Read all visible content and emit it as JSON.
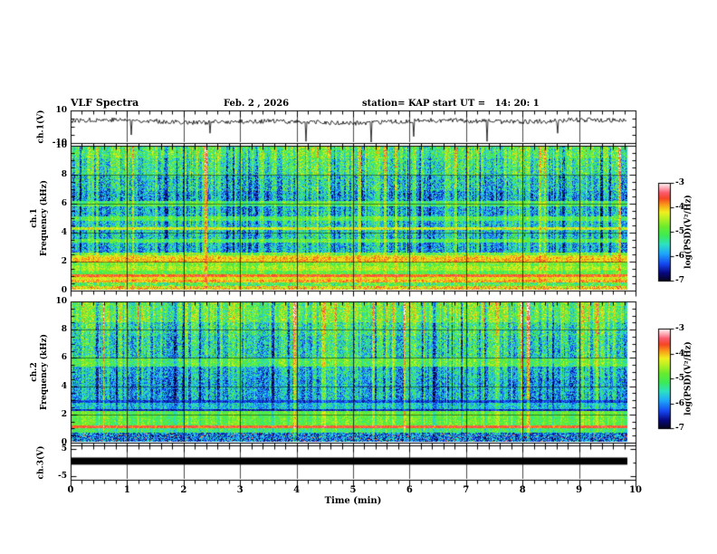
{
  "header": {
    "title": "VLF Spectra",
    "date": "Feb. 2 , 2026",
    "station": "station= KAP",
    "start_ut": "start UT =   14: 20: 1"
  },
  "axes": {
    "x": {
      "label": "Time (min)",
      "ticks": [
        "0",
        "1",
        "2",
        "3",
        "4",
        "5",
        "6",
        "7",
        "8",
        "9",
        "10"
      ],
      "range": [
        0,
        10
      ]
    },
    "ch1_wave": {
      "ylabel": "ch.1(V)",
      "yticks": [
        "10",
        "-10"
      ],
      "ylim": [
        -10,
        10
      ]
    },
    "ch1_spec": {
      "ylabel_lines": [
        "ch.1",
        "Frequency (kHz)"
      ],
      "yticks": [
        "10",
        "8",
        "6",
        "4",
        "2",
        "0"
      ],
      "ylim": [
        0,
        10
      ]
    },
    "ch2_spec": {
      "ylabel_lines": [
        "ch.2",
        "Frequency (kHz)"
      ],
      "yticks": [
        "10",
        "8",
        "6",
        "4",
        "2",
        "0"
      ],
      "ylim": [
        0,
        10
      ]
    },
    "ch3": {
      "ylabel": "ch.3(V)",
      "yticks": [
        "5",
        "-5"
      ],
      "ylim": [
        -6.5,
        6.5
      ]
    }
  },
  "colorbars": [
    {
      "label": "log(PSD)(V²/Hz)",
      "ticks": [
        "-3",
        "-4",
        "-5",
        "-6",
        "-7"
      ]
    },
    {
      "label": "log(PSD)(V²/Hz)",
      "ticks": [
        "-3",
        "-4",
        "-5",
        "-6",
        "-7"
      ]
    }
  ],
  "colormap": {
    "stops": [
      [
        0.0,
        5,
        5,
        30
      ],
      [
        0.08,
        8,
        8,
        130
      ],
      [
        0.17,
        20,
        70,
        240
      ],
      [
        0.28,
        30,
        170,
        250
      ],
      [
        0.37,
        45,
        225,
        195
      ],
      [
        0.46,
        60,
        235,
        85
      ],
      [
        0.55,
        105,
        235,
        45
      ],
      [
        0.63,
        180,
        240,
        35
      ],
      [
        0.7,
        240,
        240,
        30
      ],
      [
        0.77,
        250,
        160,
        25
      ],
      [
        0.84,
        245,
        70,
        35
      ],
      [
        0.9,
        250,
        90,
        110
      ],
      [
        0.95,
        255,
        175,
        185
      ],
      [
        1.0,
        255,
        255,
        255
      ]
    ]
  },
  "chart_data": [
    {
      "type": "line",
      "name": "ch1-waveform",
      "ylabel": "ch.1(V)",
      "xlim": [
        0,
        10
      ],
      "ylim": [
        -10,
        10
      ],
      "x_end": 9.84,
      "signal": {
        "baseline": 3.2,
        "slow_amp1": 0.6,
        "slow_amp2": 0.5,
        "jitter": 2.8,
        "seed": 77,
        "spikes": [
          [
            1.05,
            -5
          ],
          [
            2.45,
            -4
          ],
          [
            4.15,
            -9
          ],
          [
            5.3,
            -10
          ],
          [
            6.05,
            -6
          ],
          [
            7.35,
            -9
          ],
          [
            8.6,
            -4
          ]
        ]
      }
    },
    {
      "type": "heatmap",
      "name": "ch1-spectrogram",
      "ylabel": "ch.1 Frequency (kHz)",
      "xlim": [
        0,
        10
      ],
      "ylim": [
        0,
        10
      ],
      "x_end": 9.84,
      "seed": 1234,
      "value_scale": {
        "label": "log(PSD)(V²/Hz)",
        "min": -7,
        "max": -3
      },
      "bands": [
        {
          "f_lo": 9.2,
          "f_hi": 10.0,
          "level": 0.5,
          "noise": 0.17,
          "streak": 1.0
        },
        {
          "f_lo": 8.0,
          "f_hi": 9.2,
          "level": 0.44,
          "noise": 0.19,
          "streak": 1.0
        },
        {
          "f_lo": 6.9,
          "f_hi": 8.0,
          "level": 0.36,
          "noise": 0.2,
          "streak": 1.0
        },
        {
          "f_lo": 6.2,
          "f_hi": 6.9,
          "level": 0.29,
          "noise": 0.18,
          "streak": 1.0
        },
        {
          "f_lo": 5.8,
          "f_hi": 6.2,
          "level": 0.5,
          "noise": 0.12,
          "streak": 0.6
        },
        {
          "f_lo": 5.1,
          "f_hi": 5.8,
          "level": 0.32,
          "noise": 0.18,
          "streak": 1.0
        },
        {
          "f_lo": 4.8,
          "f_hi": 5.1,
          "level": 0.5,
          "noise": 0.12,
          "streak": 0.6
        },
        {
          "f_lo": 4.35,
          "f_hi": 4.8,
          "level": 0.36,
          "noise": 0.17,
          "streak": 0.9
        },
        {
          "f_lo": 4.15,
          "f_hi": 4.35,
          "level": 0.66,
          "noise": 0.1,
          "streak": 0.3
        },
        {
          "f_lo": 3.55,
          "f_hi": 4.15,
          "level": 0.34,
          "noise": 0.17,
          "streak": 0.9
        },
        {
          "f_lo": 3.25,
          "f_hi": 3.55,
          "level": 0.5,
          "noise": 0.12,
          "streak": 0.6
        },
        {
          "f_lo": 2.6,
          "f_hi": 3.25,
          "level": 0.31,
          "noise": 0.17,
          "streak": 0.9
        },
        {
          "f_lo": 2.4,
          "f_hi": 2.6,
          "level": 0.55,
          "noise": 0.14,
          "streak": 0.5
        },
        {
          "f_lo": 2.25,
          "f_hi": 2.4,
          "level": 0.68,
          "noise": 0.11,
          "streak": 0.3
        },
        {
          "f_lo": 1.9,
          "f_hi": 2.25,
          "level": 0.74,
          "noise": 0.09,
          "streak": 0.2
        },
        {
          "f_lo": 1.6,
          "f_hi": 1.9,
          "level": 0.56,
          "noise": 0.12,
          "streak": 0.4
        },
        {
          "f_lo": 1.3,
          "f_hi": 1.6,
          "level": 0.62,
          "noise": 0.1,
          "streak": 0.4
        },
        {
          "f_lo": 1.05,
          "f_hi": 1.3,
          "level": 0.52,
          "noise": 0.1,
          "streak": 0.4
        },
        {
          "f_lo": 0.85,
          "f_hi": 1.05,
          "level": 0.82,
          "noise": 0.07,
          "streak": 0.2
        },
        {
          "f_lo": 0.65,
          "f_hi": 0.85,
          "level": 0.68,
          "noise": 0.09,
          "streak": 0.3
        },
        {
          "f_lo": 0.45,
          "f_hi": 0.65,
          "level": 0.76,
          "noise": 0.09,
          "streak": 0.2
        },
        {
          "f_lo": 0.25,
          "f_hi": 0.45,
          "level": 0.5,
          "noise": 0.16,
          "streak": 0.4
        },
        {
          "f_lo": 0.0,
          "f_hi": 0.25,
          "level": 0.71,
          "noise": 0.15,
          "streak": 0.2,
          "specks": 0.05
        }
      ]
    },
    {
      "type": "heatmap",
      "name": "ch2-spectrogram",
      "ylabel": "ch.2 Frequency (kHz)",
      "xlim": [
        0,
        10
      ],
      "ylim": [
        0,
        10
      ],
      "x_end": 9.84,
      "seed": 98765,
      "value_scale": {
        "label": "log(PSD)(V²/Hz)",
        "min": -7,
        "max": -3
      },
      "bands": [
        {
          "f_lo": 8.6,
          "f_hi": 10.0,
          "level": 0.52,
          "noise": 0.17,
          "streak": 1.0
        },
        {
          "f_lo": 7.6,
          "f_hi": 8.6,
          "level": 0.42,
          "noise": 0.19,
          "streak": 1.0
        },
        {
          "f_lo": 6.0,
          "f_hi": 7.6,
          "level": 0.38,
          "noise": 0.19,
          "streak": 1.0
        },
        {
          "f_lo": 5.4,
          "f_hi": 6.0,
          "level": 0.5,
          "noise": 0.13,
          "streak": 0.7
        },
        {
          "f_lo": 4.6,
          "f_hi": 5.4,
          "level": 0.32,
          "noise": 0.17,
          "streak": 0.9
        },
        {
          "f_lo": 3.0,
          "f_hi": 4.6,
          "level": 0.29,
          "noise": 0.17,
          "streak": 0.9
        },
        {
          "f_lo": 2.75,
          "f_hi": 3.0,
          "level": 0.16,
          "noise": 0.09,
          "streak": 0.3
        },
        {
          "f_lo": 2.35,
          "f_hi": 2.75,
          "level": 0.32,
          "noise": 0.13,
          "streak": 0.5
        },
        {
          "f_lo": 2.2,
          "f_hi": 2.35,
          "level": 0.13,
          "noise": 0.07,
          "streak": 0.2
        },
        {
          "f_lo": 1.15,
          "f_hi": 2.2,
          "level": 0.52,
          "noise": 0.1,
          "streak": 0.5
        },
        {
          "f_lo": 0.95,
          "f_hi": 1.15,
          "level": 0.84,
          "noise": 0.07,
          "streak": 0.2
        },
        {
          "f_lo": 0.6,
          "f_hi": 0.95,
          "level": 0.45,
          "noise": 0.12,
          "streak": 0.4
        },
        {
          "f_lo": 0.0,
          "f_hi": 0.6,
          "level": 0.22,
          "noise": 0.2,
          "streak": 0.3,
          "specks": 0.04
        }
      ]
    },
    {
      "type": "area",
      "name": "ch3-output",
      "ylabel": "ch.3(V)",
      "xlim": [
        0,
        10
      ],
      "x_end": 9.84,
      "ylim": [
        -6.5,
        6.5
      ],
      "value_lo": -0.8,
      "value_hi": 1.9,
      "color": "#000000"
    }
  ]
}
